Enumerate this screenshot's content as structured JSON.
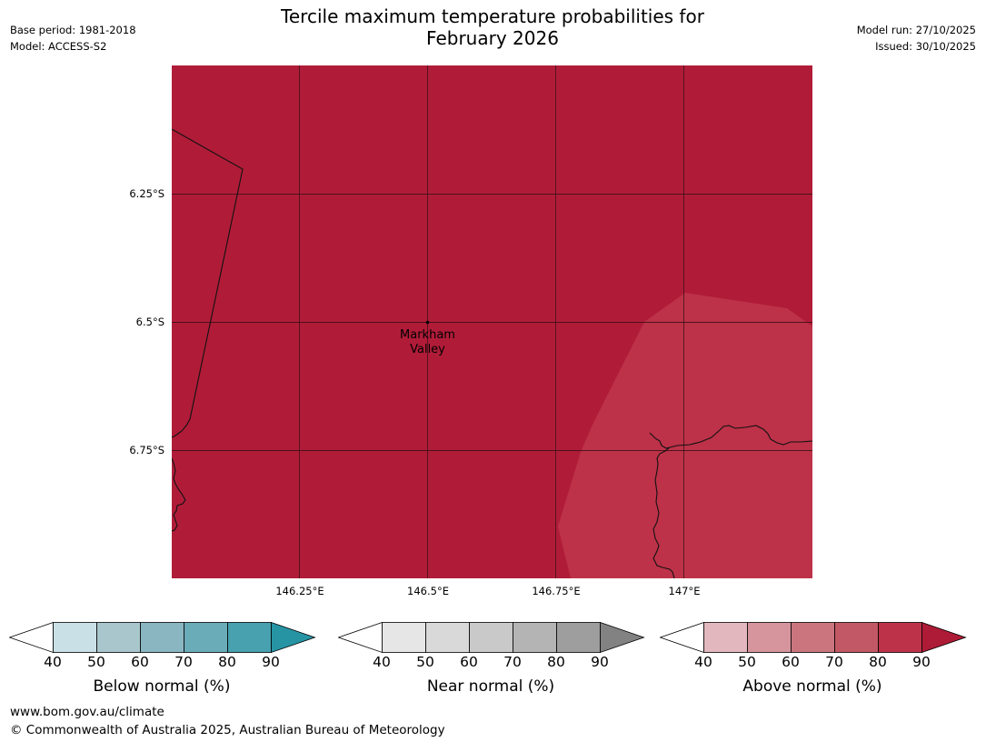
{
  "title": {
    "line1": "Tercile maximum temperature probabilities for",
    "line2": "February 2026"
  },
  "meta_left": {
    "base_period": "Base period: 1981-2018",
    "model": "Model: ACCESS-S2"
  },
  "meta_right": {
    "model_run": "Model run: 27/10/2025",
    "issued": "Issued: 30/10/2025"
  },
  "map": {
    "lat_ticks": [
      "6.25°S",
      "6.5°S",
      "6.75°S"
    ],
    "lon_ticks": [
      "146.25°E",
      "146.5°E",
      "146.75°E",
      "147°E"
    ],
    "place": {
      "line1": "Markham",
      "line2": "Valley"
    },
    "colors": {
      "above_90": "#b01c38",
      "above_80": "#bd3248"
    }
  },
  "colorbars": [
    {
      "label": "Below normal (%)",
      "ticks": [
        "40",
        "50",
        "60",
        "70",
        "80",
        "90"
      ],
      "colors": [
        "#ffffff",
        "#c9e1e6",
        "#a8c6cc",
        "#8ab6c2",
        "#6bacb9",
        "#47a1af",
        "#2794a4"
      ]
    },
    {
      "label": "Near normal (%)",
      "ticks": [
        "40",
        "50",
        "60",
        "70",
        "80",
        "90"
      ],
      "colors": [
        "#ffffff",
        "#e6e6e6",
        "#d9d9d9",
        "#c9c9c9",
        "#b4b4b4",
        "#9e9e9e",
        "#828282"
      ]
    },
    {
      "label": "Above normal (%)",
      "ticks": [
        "40",
        "50",
        "60",
        "70",
        "80",
        "90"
      ],
      "colors": [
        "#ffffff",
        "#e2b8be",
        "#d6959d",
        "#cb767f",
        "#c25866",
        "#bd3248",
        "#ae1b36"
      ]
    }
  ],
  "footer": {
    "url": "www.bom.gov.au/climate",
    "copyright": "© Commonwealth of Australia 2025, Australian Bureau of Meteorology"
  }
}
